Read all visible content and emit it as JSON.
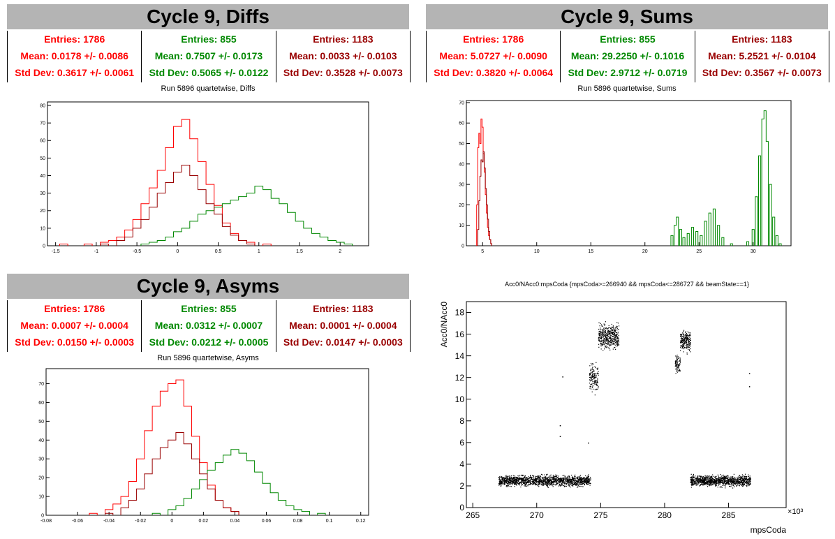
{
  "colors": {
    "c1": "#ff0000",
    "c2": "#008800",
    "c3": "#990000",
    "titlebar": "#b4b4b4"
  },
  "panels": {
    "diffs": {
      "title": "Cycle 9, Diffs",
      "subtitle": "Run 5896 quartetwise, Diffs",
      "stats": [
        {
          "entries": "Entries: 1786",
          "mean": "Mean: 0.0178 +/- 0.0086",
          "std": "Std Dev: 0.3617 +/- 0.0061"
        },
        {
          "entries": "Entries: 855",
          "mean": "Mean: 0.7507 +/- 0.0173",
          "std": "Std Dev: 0.5065 +/- 0.0122"
        },
        {
          "entries": "Entries: 1183",
          "mean": "Mean: 0.0033 +/- 0.0103",
          "std": "Std Dev: 0.3528 +/- 0.0073"
        }
      ]
    },
    "sums": {
      "title": "Cycle 9, Sums",
      "subtitle": "Run 5896 quartetwise, Sums",
      "stats": [
        {
          "entries": "Entries: 1786",
          "mean": "Mean: 5.0727 +/- 0.0090",
          "std": "Std Dev: 0.3820 +/- 0.0064"
        },
        {
          "entries": "Entries: 855",
          "mean": "Mean: 29.2250 +/- 0.1016",
          "std": "Std Dev: 2.9712 +/- 0.0719"
        },
        {
          "entries": "Entries: 1183",
          "mean": "Mean: 5.2521 +/- 0.0104",
          "std": "Std Dev: 0.3567 +/- 0.0073"
        }
      ]
    },
    "asyms": {
      "title": "Cycle 9, Asyms",
      "subtitle": "Run 5896 quartetwise, Asyms",
      "stats": [
        {
          "entries": "Entries: 1786",
          "mean": "Mean: 0.0007 +/- 0.0004",
          "std": "Std Dev: 0.0150 +/- 0.0003"
        },
        {
          "entries": "Entries: 855",
          "mean": "Mean: 0.0312 +/- 0.0007",
          "std": "Std Dev: 0.0212 +/- 0.0005"
        },
        {
          "entries": "Entries: 1183",
          "mean": "Mean: 0.0001 +/- 0.0004",
          "std": "Std Dev: 0.0147 +/- 0.0003"
        }
      ]
    },
    "scatter": {
      "title": "Acc0/NAcc0:mpsCoda {mpsCoda>=266940 && mpsCoda<=286727 && beamState==1}",
      "xlabel": "mpsCoda",
      "ylabel": "Acc0/NAcc0",
      "xexp": "×10³"
    }
  },
  "chart_data": [
    {
      "type": "histogram",
      "name": "diffs",
      "xlim": [
        -1.6,
        2.35
      ],
      "ylim": [
        0,
        82
      ],
      "xticks": [
        -1.5,
        -1,
        -0.5,
        0,
        0.5,
        1,
        1.5,
        2
      ],
      "yticks": [
        0,
        10,
        20,
        30,
        40,
        50,
        60,
        70,
        80
      ],
      "series": [
        {
          "color": "#ff0000",
          "bins": [
            [
              -1.4,
              1
            ],
            [
              -1.1,
              1
            ],
            [
              -0.9,
              2
            ],
            [
              -0.8,
              3
            ],
            [
              -0.7,
              5
            ],
            [
              -0.6,
              9
            ],
            [
              -0.5,
              15
            ],
            [
              -0.4,
              24
            ],
            [
              -0.3,
              33
            ],
            [
              -0.2,
              43
            ],
            [
              -0.1,
              56
            ],
            [
              0,
              68
            ],
            [
              0.1,
              72
            ],
            [
              0.2,
              61
            ],
            [
              0.3,
              48
            ],
            [
              0.4,
              35
            ],
            [
              0.5,
              23
            ],
            [
              0.6,
              13
            ],
            [
              0.7,
              7
            ],
            [
              0.8,
              3
            ],
            [
              0.9,
              2
            ],
            [
              1.1,
              1
            ]
          ]
        },
        {
          "color": "#008800",
          "bins": [
            [
              -0.4,
              1
            ],
            [
              -0.3,
              2
            ],
            [
              -0.2,
              3
            ],
            [
              -0.1,
              5
            ],
            [
              0,
              8
            ],
            [
              0.1,
              10
            ],
            [
              0.2,
              14
            ],
            [
              0.3,
              18
            ],
            [
              0.4,
              20
            ],
            [
              0.5,
              22
            ],
            [
              0.6,
              24
            ],
            [
              0.7,
              26
            ],
            [
              0.8,
              28
            ],
            [
              0.9,
              30
            ],
            [
              1.0,
              34
            ],
            [
              1.1,
              32
            ],
            [
              1.2,
              27
            ],
            [
              1.3,
              24
            ],
            [
              1.4,
              19
            ],
            [
              1.5,
              14
            ],
            [
              1.6,
              10
            ],
            [
              1.7,
              7
            ],
            [
              1.8,
              5
            ],
            [
              1.9,
              3
            ],
            [
              2.0,
              2
            ],
            [
              2.1,
              1
            ]
          ]
        },
        {
          "color": "#990000",
          "bins": [
            [
              -0.9,
              1
            ],
            [
              -0.7,
              3
            ],
            [
              -0.6,
              5
            ],
            [
              -0.5,
              10
            ],
            [
              -0.4,
              15
            ],
            [
              -0.3,
              22
            ],
            [
              -0.2,
              30
            ],
            [
              -0.1,
              36
            ],
            [
              0,
              42
            ],
            [
              0.1,
              46
            ],
            [
              0.2,
              40
            ],
            [
              0.3,
              32
            ],
            [
              0.4,
              24
            ],
            [
              0.5,
              18
            ],
            [
              0.6,
              11
            ],
            [
              0.7,
              6
            ],
            [
              0.8,
              3
            ],
            [
              0.9,
              1
            ]
          ]
        }
      ]
    },
    {
      "type": "histogram",
      "name": "sums",
      "xlim": [
        3.5,
        33.5
      ],
      "ylim": [
        0,
        71
      ],
      "xticks": [
        5,
        10,
        15,
        20,
        25,
        30
      ],
      "yticks": [
        0,
        10,
        20,
        30,
        40,
        50,
        60,
        70
      ],
      "series": [
        {
          "color": "#ff0000",
          "bins": [
            [
              4.5,
              20
            ],
            [
              4.6,
              48
            ],
            [
              4.7,
              55
            ],
            [
              4.8,
              50
            ],
            [
              4.9,
              62
            ],
            [
              5.0,
              58
            ],
            [
              5.1,
              45
            ],
            [
              5.2,
              36
            ],
            [
              5.3,
              25
            ],
            [
              5.4,
              16
            ],
            [
              5.5,
              9
            ],
            [
              5.6,
              5
            ],
            [
              5.7,
              3
            ],
            [
              5.8,
              1
            ]
          ]
        },
        {
          "color": "#008800",
          "bins": [
            [
              22.5,
              5
            ],
            [
              22.8,
              10
            ],
            [
              23.0,
              14
            ],
            [
              23.3,
              8
            ],
            [
              23.6,
              4
            ],
            [
              24.0,
              6
            ],
            [
              24.4,
              9
            ],
            [
              24.8,
              7
            ],
            [
              25.2,
              5
            ],
            [
              25.6,
              12
            ],
            [
              26.0,
              16
            ],
            [
              26.4,
              18
            ],
            [
              26.8,
              10
            ],
            [
              27.2,
              4
            ],
            [
              28.0,
              1
            ],
            [
              29.5,
              2
            ],
            [
              30.0,
              8
            ],
            [
              30.3,
              24
            ],
            [
              30.6,
              44
            ],
            [
              30.9,
              62
            ],
            [
              31.1,
              66
            ],
            [
              31.3,
              51
            ],
            [
              31.6,
              30
            ],
            [
              31.9,
              14
            ],
            [
              32.2,
              5
            ],
            [
              32.5,
              1
            ]
          ]
        },
        {
          "color": "#990000",
          "bins": [
            [
              4.6,
              8
            ],
            [
              4.7,
              22
            ],
            [
              4.8,
              34
            ],
            [
              4.9,
              42
            ],
            [
              5.0,
              41
            ],
            [
              5.1,
              46
            ],
            [
              5.2,
              38
            ],
            [
              5.3,
              28
            ],
            [
              5.4,
              20
            ],
            [
              5.5,
              13
            ],
            [
              5.6,
              7
            ],
            [
              5.7,
              3
            ],
            [
              5.8,
              1
            ]
          ]
        }
      ]
    },
    {
      "type": "histogram",
      "name": "asyms",
      "xlim": [
        -0.08,
        0.125
      ],
      "ylim": [
        0,
        78
      ],
      "xticks": [
        -0.08,
        -0.06,
        -0.04,
        -0.02,
        0,
        0.02,
        0.04,
        0.06,
        0.08,
        0.1,
        0.12
      ],
      "yticks": [
        0,
        10,
        20,
        30,
        40,
        50,
        60,
        70
      ],
      "series": [
        {
          "color": "#ff0000",
          "bins": [
            [
              -0.05,
              1
            ],
            [
              -0.04,
              3
            ],
            [
              -0.035,
              6
            ],
            [
              -0.03,
              10
            ],
            [
              -0.025,
              18
            ],
            [
              -0.02,
              30
            ],
            [
              -0.015,
              45
            ],
            [
              -0.01,
              58
            ],
            [
              -0.005,
              66
            ],
            [
              0,
              70
            ],
            [
              0.005,
              72
            ],
            [
              0.01,
              58
            ],
            [
              0.015,
              42
            ],
            [
              0.02,
              28
            ],
            [
              0.025,
              16
            ],
            [
              0.03,
              8
            ],
            [
              0.035,
              4
            ],
            [
              0.04,
              2
            ]
          ]
        },
        {
          "color": "#008800",
          "bins": [
            [
              -0.01,
              1
            ],
            [
              0,
              3
            ],
            [
              0.005,
              5
            ],
            [
              0.01,
              9
            ],
            [
              0.015,
              14
            ],
            [
              0.02,
              19
            ],
            [
              0.025,
              24
            ],
            [
              0.03,
              28
            ],
            [
              0.035,
              32
            ],
            [
              0.04,
              35
            ],
            [
              0.045,
              33
            ],
            [
              0.05,
              29
            ],
            [
              0.055,
              23
            ],
            [
              0.06,
              17
            ],
            [
              0.065,
              12
            ],
            [
              0.07,
              8
            ],
            [
              0.075,
              5
            ],
            [
              0.08,
              3
            ],
            [
              0.085,
              2
            ],
            [
              0.095,
              1
            ]
          ]
        },
        {
          "color": "#990000",
          "bins": [
            [
              -0.04,
              1
            ],
            [
              -0.03,
              4
            ],
            [
              -0.025,
              8
            ],
            [
              -0.02,
              14
            ],
            [
              -0.015,
              22
            ],
            [
              -0.01,
              30
            ],
            [
              -0.005,
              36
            ],
            [
              0,
              40
            ],
            [
              0.005,
              44
            ],
            [
              0.01,
              38
            ],
            [
              0.015,
              30
            ],
            [
              0.02,
              22
            ],
            [
              0.025,
              14
            ],
            [
              0.03,
              8
            ],
            [
              0.035,
              4
            ],
            [
              0.04,
              2
            ]
          ]
        }
      ]
    },
    {
      "type": "scatter",
      "name": "scatter",
      "xlim": [
        264.5,
        289.5
      ],
      "ylim": [
        0,
        19
      ],
      "xticks": [
        265,
        270,
        275,
        280,
        285
      ],
      "yticks": [
        0,
        2,
        4,
        6,
        8,
        10,
        12,
        14,
        16,
        18
      ],
      "clusters": [
        {
          "x": [
            267,
            274.2
          ],
          "y": [
            1.8,
            3.2
          ],
          "n": 1500
        },
        {
          "x": [
            274.1,
            274.8
          ],
          "y": [
            10.2,
            13.8
          ],
          "n": 140
        },
        {
          "x": [
            274.8,
            276.4
          ],
          "y": [
            14.2,
            17.4
          ],
          "n": 420
        },
        {
          "x": [
            280.8,
            281.2
          ],
          "y": [
            12.2,
            14.4
          ],
          "n": 80
        },
        {
          "x": [
            281.2,
            282.0
          ],
          "y": [
            14.0,
            16.8
          ],
          "n": 220
        },
        {
          "x": [
            282.0,
            286.7
          ],
          "y": [
            1.8,
            3.2
          ],
          "n": 1100
        }
      ],
      "outliers": [
        [
          271.8,
          7.6
        ],
        [
          271.8,
          6.6
        ],
        [
          272.0,
          12.1
        ],
        [
          274.0,
          6.0
        ],
        [
          286.6,
          11.2
        ],
        [
          286.6,
          12.4
        ]
      ]
    }
  ]
}
